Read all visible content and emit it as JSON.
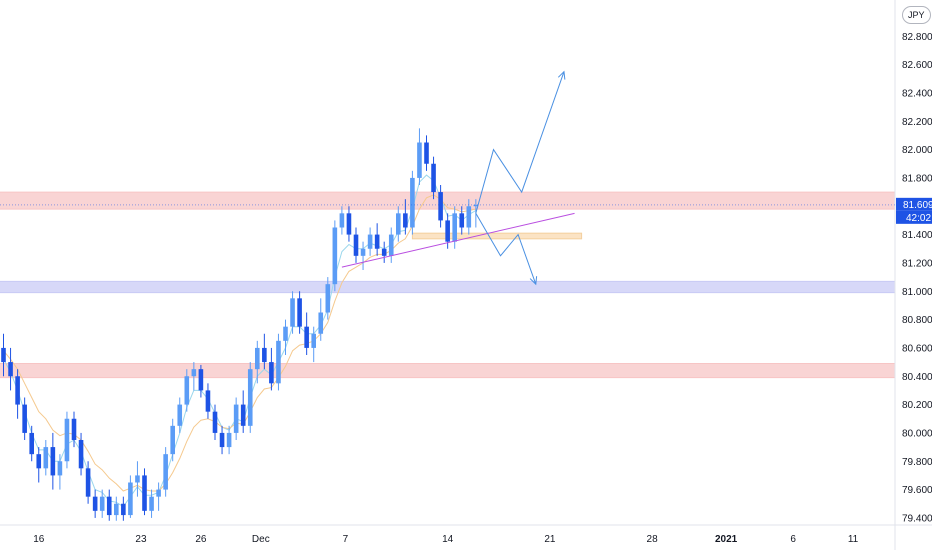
{
  "axis": {
    "currency": "JPY",
    "y_ticks": [
      "82.800",
      "82.600",
      "82.400",
      "82.200",
      "82.000",
      "81.800",
      "81.600",
      "81.400",
      "81.200",
      "81.000",
      "80.800",
      "80.600",
      "80.400",
      "80.200",
      "80.000",
      "79.800",
      "79.600",
      "79.400"
    ],
    "x_ticks": [
      "16",
      "23",
      "26",
      "Dec",
      "7",
      "14",
      "21",
      "28",
      "2021",
      "6",
      "11"
    ],
    "last_price": "81.609",
    "countdown": "42:02"
  },
  "colors": {
    "up": "#5b9cf6",
    "down": "#1e53e5",
    "ema_fast": "#9bd7ec",
    "ema_slow": "#f5c98e",
    "resistance_zone": "#f7c5c5",
    "support_zone": "#c9cbf5",
    "small_zone": "#fbe3c4",
    "trendline": "#b94ee0",
    "projection": "#4a90e2",
    "price_badge": "#1e53e5"
  },
  "chart_data": {
    "type": "candlestick",
    "title": "",
    "xlabel": "",
    "ylabel": "",
    "ylim": [
      79.35,
      82.95
    ],
    "series": [
      {
        "type": "candlestick",
        "candles": [
          [
            80.6,
            80.7,
            80.4,
            80.5
          ],
          [
            80.5,
            80.6,
            80.3,
            80.4
          ],
          [
            80.4,
            80.45,
            80.1,
            80.2
          ],
          [
            80.2,
            80.25,
            79.95,
            80.0
          ],
          [
            80.0,
            80.05,
            79.8,
            79.85
          ],
          [
            79.85,
            79.9,
            79.65,
            79.75
          ],
          [
            79.75,
            79.95,
            79.7,
            79.9
          ],
          [
            79.9,
            80.0,
            79.6,
            79.7
          ],
          [
            79.7,
            79.85,
            79.6,
            79.8
          ],
          [
            79.8,
            80.15,
            79.75,
            80.1
          ],
          [
            80.1,
            80.15,
            79.9,
            79.95
          ],
          [
            79.95,
            80.0,
            79.7,
            79.75
          ],
          [
            79.75,
            79.8,
            79.5,
            79.55
          ],
          [
            79.55,
            79.6,
            79.4,
            79.45
          ],
          [
            79.45,
            79.6,
            79.4,
            79.55
          ],
          [
            79.55,
            79.6,
            79.38,
            79.42
          ],
          [
            79.42,
            79.55,
            79.38,
            79.5
          ],
          [
            79.5,
            79.55,
            79.38,
            79.42
          ],
          [
            79.42,
            79.7,
            79.4,
            79.65
          ],
          [
            79.65,
            79.8,
            79.55,
            79.7
          ],
          [
            79.7,
            79.75,
            79.42,
            79.45
          ],
          [
            79.45,
            79.6,
            79.4,
            79.55
          ],
          [
            79.55,
            79.65,
            79.45,
            79.6
          ],
          [
            79.6,
            79.9,
            79.55,
            79.85
          ],
          [
            79.85,
            80.1,
            79.8,
            80.05
          ],
          [
            80.05,
            80.25,
            80.0,
            80.2
          ],
          [
            80.2,
            80.45,
            80.15,
            80.4
          ],
          [
            80.4,
            80.5,
            80.3,
            80.45
          ],
          [
            80.45,
            80.48,
            80.25,
            80.3
          ],
          [
            80.3,
            80.35,
            80.1,
            80.15
          ],
          [
            80.15,
            80.2,
            79.95,
            80.0
          ],
          [
            80.0,
            80.05,
            79.85,
            79.9
          ],
          [
            79.9,
            80.05,
            79.85,
            80.0
          ],
          [
            80.0,
            80.25,
            79.95,
            80.2
          ],
          [
            80.2,
            80.3,
            80.0,
            80.05
          ],
          [
            80.05,
            80.5,
            80.0,
            80.45
          ],
          [
            80.45,
            80.65,
            80.35,
            80.6
          ],
          [
            80.6,
            80.7,
            80.45,
            80.5
          ],
          [
            80.5,
            80.6,
            80.3,
            80.35
          ],
          [
            80.35,
            80.7,
            80.3,
            80.65
          ],
          [
            80.65,
            80.8,
            80.55,
            80.75
          ],
          [
            80.75,
            81.0,
            80.7,
            80.95
          ],
          [
            80.95,
            81.0,
            80.7,
            80.75
          ],
          [
            80.75,
            80.85,
            80.55,
            80.6
          ],
          [
            80.6,
            80.75,
            80.5,
            80.7
          ],
          [
            80.7,
            80.95,
            80.65,
            80.85
          ],
          [
            80.85,
            81.1,
            80.8,
            81.05
          ],
          [
            81.05,
            81.5,
            81.0,
            81.45
          ],
          [
            81.45,
            81.6,
            81.4,
            81.55
          ],
          [
            81.55,
            81.6,
            81.35,
            81.4
          ],
          [
            81.4,
            81.45,
            81.2,
            81.25
          ],
          [
            81.25,
            81.35,
            81.15,
            81.3
          ],
          [
            81.3,
            81.45,
            81.25,
            81.4
          ],
          [
            81.4,
            81.48,
            81.25,
            81.3
          ],
          [
            81.3,
            81.35,
            81.2,
            81.25
          ],
          [
            81.25,
            81.45,
            81.2,
            81.4
          ],
          [
            81.4,
            81.6,
            81.35,
            81.55
          ],
          [
            81.55,
            81.65,
            81.4,
            81.45
          ],
          [
            81.45,
            81.85,
            81.4,
            81.8
          ],
          [
            81.8,
            82.15,
            81.75,
            82.05
          ],
          [
            82.05,
            82.1,
            81.85,
            81.9
          ],
          [
            81.9,
            81.95,
            81.65,
            81.7
          ],
          [
            81.7,
            81.75,
            81.45,
            81.5
          ],
          [
            81.5,
            81.55,
            81.3,
            81.35
          ],
          [
            81.35,
            81.6,
            81.3,
            81.55
          ],
          [
            81.55,
            81.6,
            81.4,
            81.45
          ],
          [
            81.45,
            81.65,
            81.4,
            81.6
          ],
          [
            81.6,
            81.65,
            81.45,
            81.61
          ]
        ]
      },
      {
        "type": "line",
        "role": "ema_fast",
        "values": [
          80.52,
          80.43,
          80.3,
          80.15,
          80.0,
          79.88,
          79.88,
          79.8,
          79.8,
          79.92,
          79.95,
          79.87,
          79.73,
          79.6,
          79.58,
          79.52,
          79.51,
          79.48,
          79.55,
          79.62,
          79.56,
          79.56,
          79.58,
          79.7,
          79.85,
          80.0,
          80.18,
          80.3,
          80.3,
          80.24,
          80.14,
          80.04,
          80.02,
          80.1,
          80.08,
          80.25,
          80.4,
          80.45,
          80.41,
          80.5,
          80.6,
          80.75,
          80.75,
          80.7,
          80.7,
          80.76,
          80.87,
          81.1,
          81.28,
          81.33,
          81.3,
          81.3,
          81.34,
          81.32,
          81.3,
          81.33,
          81.42,
          81.43,
          81.58,
          81.77,
          81.82,
          81.78,
          81.66,
          81.53,
          81.54,
          81.5,
          81.54,
          81.57
        ]
      },
      {
        "type": "line",
        "role": "ema_slow",
        "values": [
          80.58,
          80.52,
          80.45,
          80.35,
          80.25,
          80.15,
          80.1,
          80.02,
          79.98,
          80.0,
          79.99,
          79.95,
          79.87,
          79.78,
          79.74,
          79.68,
          79.64,
          79.59,
          79.61,
          79.63,
          79.6,
          79.59,
          79.59,
          79.64,
          79.72,
          79.82,
          79.94,
          80.04,
          80.09,
          80.1,
          80.08,
          80.04,
          80.03,
          80.07,
          80.06,
          80.15,
          80.25,
          80.31,
          80.32,
          80.39,
          80.47,
          80.58,
          80.62,
          80.63,
          80.65,
          80.7,
          80.78,
          80.93,
          81.06,
          81.14,
          81.17,
          81.2,
          81.24,
          81.26,
          81.26,
          81.29,
          81.34,
          81.37,
          81.46,
          81.58,
          81.66,
          81.68,
          81.65,
          81.59,
          81.58,
          81.56,
          81.57,
          81.58
        ]
      }
    ],
    "zones": [
      {
        "name": "",
        "from": 81.58,
        "to": 81.7,
        "color": "resistance_zone"
      },
      {
        "name": "",
        "from": 80.99,
        "to": 81.07,
        "color": "support_zone"
      },
      {
        "name": "",
        "from": 80.39,
        "to": 80.49,
        "color": "resistance_zone"
      }
    ],
    "small_zone": {
      "from_index": 58,
      "to_index": 82,
      "from": 81.37,
      "to": 81.41
    },
    "trendline": {
      "from": [
        48,
        81.17
      ],
      "to": [
        81,
        81.55
      ]
    },
    "projections": [
      [
        [
          67,
          81.55
        ],
        [
          69.5,
          82.0
        ],
        [
          73.5,
          81.7
        ],
        [
          79.5,
          82.55
        ]
      ],
      [
        [
          67,
          81.55
        ],
        [
          70.5,
          81.25
        ],
        [
          73,
          81.4
        ],
        [
          75.5,
          81.05
        ]
      ]
    ],
    "x_tick_indices": [
      5,
      19.5,
      28,
      36.5,
      48.5,
      63,
      77.5,
      92,
      102.5,
      112,
      120.5
    ],
    "y_tick_values": [
      82.8,
      82.6,
      82.4,
      82.2,
      82.0,
      81.8,
      81.6,
      81.4,
      81.2,
      81.0,
      80.8,
      80.6,
      80.4,
      80.2,
      80.0,
      79.8,
      79.6,
      79.4
    ]
  }
}
